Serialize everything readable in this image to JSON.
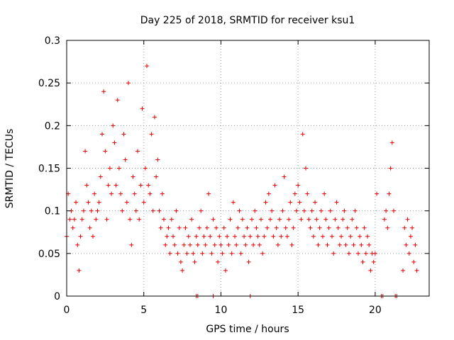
{
  "chart_data": {
    "type": "scatter",
    "title": "Day 225 of 2018, SRMTID for receiver ksu1",
    "xlabel": "GPS time / hours",
    "ylabel": "SRMTID / TECUs",
    "xlim": [
      0,
      23.5
    ],
    "ylim": [
      0,
      0.3
    ],
    "x_ticks": [
      0,
      5,
      10,
      15,
      20
    ],
    "x_tick_labels": [
      "0",
      "5",
      "10",
      "15",
      "20"
    ],
    "y_ticks": [
      0,
      0.05,
      0.1,
      0.15,
      0.2,
      0.25,
      0.3
    ],
    "y_tick_labels": [
      "0",
      "0.05",
      "0.1",
      "0.15",
      "0.2",
      "0.25",
      "0.3"
    ],
    "grid": true,
    "marker": "+",
    "series": [
      {
        "name": "SRMTID",
        "color": "#e00000",
        "x": [
          0.0,
          0.1,
          0.2,
          0.3,
          0.4,
          0.5,
          0.6,
          0.7,
          0.8,
          0.9,
          1.0,
          1.1,
          1.2,
          1.3,
          1.4,
          1.5,
          1.6,
          1.7,
          1.8,
          1.9,
          2.0,
          2.1,
          2.2,
          2.3,
          2.4,
          2.5,
          2.6,
          2.7,
          2.8,
          2.9,
          3.0,
          3.1,
          3.2,
          3.3,
          3.4,
          3.5,
          3.6,
          3.7,
          3.8,
          3.9,
          4.0,
          4.1,
          4.2,
          4.3,
          4.4,
          4.5,
          4.6,
          4.7,
          4.8,
          4.9,
          5.0,
          5.1,
          5.2,
          5.3,
          5.4,
          5.5,
          5.6,
          5.7,
          5.8,
          5.9,
          6.0,
          6.1,
          6.2,
          6.3,
          6.4,
          6.5,
          6.6,
          6.7,
          6.8,
          6.9,
          7.0,
          7.1,
          7.2,
          7.3,
          7.4,
          7.5,
          7.6,
          7.7,
          7.8,
          7.9,
          8.0,
          8.1,
          8.2,
          8.3,
          8.4,
          8.5,
          8.6,
          8.7,
          8.8,
          8.9,
          9.0,
          9.1,
          9.2,
          9.3,
          9.4,
          9.5,
          9.6,
          9.7,
          9.8,
          9.9,
          10.0,
          10.1,
          10.2,
          10.3,
          10.4,
          10.5,
          10.6,
          10.7,
          10.8,
          10.9,
          11.0,
          11.1,
          11.2,
          11.3,
          11.4,
          11.5,
          11.6,
          11.7,
          11.8,
          11.9,
          12.0,
          12.1,
          12.2,
          12.3,
          12.4,
          12.5,
          12.6,
          12.7,
          12.8,
          12.9,
          13.0,
          13.1,
          13.2,
          13.3,
          13.4,
          13.5,
          13.6,
          13.7,
          13.8,
          13.9,
          14.0,
          14.1,
          14.2,
          14.3,
          14.4,
          14.5,
          14.6,
          14.7,
          14.8,
          14.9,
          15.0,
          15.1,
          15.2,
          15.3,
          15.4,
          15.5,
          15.6,
          15.7,
          15.8,
          15.9,
          16.0,
          16.1,
          16.2,
          16.3,
          16.4,
          16.5,
          16.6,
          16.7,
          16.8,
          16.9,
          17.0,
          17.1,
          17.2,
          17.3,
          17.4,
          17.5,
          17.6,
          17.7,
          17.8,
          17.9,
          18.0,
          18.1,
          18.2,
          18.3,
          18.4,
          18.5,
          18.6,
          18.7,
          18.8,
          18.9,
          19.0,
          19.1,
          19.2,
          19.3,
          19.4,
          19.5,
          19.6,
          19.7,
          19.8,
          19.9,
          20.0,
          20.1,
          20.6,
          20.7,
          20.8,
          20.9,
          21.0,
          21.1,
          21.2,
          21.8,
          21.9,
          22.0,
          22.1,
          22.2,
          22.3,
          22.4,
          22.5,
          22.6,
          22.7,
          8.4,
          8.5,
          9.5,
          11.9,
          20.4,
          20.5,
          21.3,
          21.4
        ],
        "y": [
          0.07,
          0.12,
          0.09,
          0.1,
          0.08,
          0.09,
          0.11,
          0.06,
          0.03,
          0.07,
          0.09,
          0.1,
          0.17,
          0.13,
          0.11,
          0.08,
          0.1,
          0.07,
          0.12,
          0.09,
          0.1,
          0.11,
          0.14,
          0.19,
          0.24,
          0.17,
          0.09,
          0.13,
          0.15,
          0.12,
          0.2,
          0.18,
          0.13,
          0.23,
          0.15,
          0.12,
          0.1,
          0.19,
          0.16,
          0.11,
          0.25,
          0.09,
          0.06,
          0.14,
          0.12,
          0.1,
          0.17,
          0.09,
          0.13,
          0.22,
          0.11,
          0.15,
          0.27,
          0.13,
          0.12,
          0.19,
          0.1,
          0.21,
          0.14,
          0.16,
          0.1,
          0.08,
          0.12,
          0.09,
          0.06,
          0.07,
          0.08,
          0.05,
          0.09,
          0.07,
          0.06,
          0.1,
          0.05,
          0.08,
          0.04,
          0.03,
          0.06,
          0.08,
          0.05,
          0.07,
          0.06,
          0.09,
          0.05,
          0.04,
          0.07,
          0.06,
          0.08,
          0.1,
          0.05,
          0.07,
          0.06,
          0.08,
          0.12,
          0.07,
          0.05,
          0.09,
          0.06,
          0.08,
          0.04,
          0.07,
          0.06,
          0.05,
          0.08,
          0.03,
          0.07,
          0.06,
          0.09,
          0.05,
          0.11,
          0.07,
          0.06,
          0.08,
          0.1,
          0.05,
          0.09,
          0.07,
          0.06,
          0.08,
          0.04,
          0.07,
          0.09,
          0.06,
          0.1,
          0.08,
          0.07,
          0.06,
          0.09,
          0.05,
          0.07,
          0.11,
          0.08,
          0.12,
          0.09,
          0.1,
          0.07,
          0.13,
          0.08,
          0.06,
          0.09,
          0.07,
          0.1,
          0.14,
          0.08,
          0.07,
          0.09,
          0.11,
          0.06,
          0.08,
          0.12,
          0.1,
          0.13,
          0.11,
          0.09,
          0.19,
          0.1,
          0.15,
          0.12,
          0.09,
          0.08,
          0.1,
          0.07,
          0.11,
          0.09,
          0.06,
          0.08,
          0.1,
          0.07,
          0.12,
          0.09,
          0.06,
          0.08,
          0.1,
          0.07,
          0.05,
          0.09,
          0.11,
          0.08,
          0.06,
          0.07,
          0.09,
          0.1,
          0.06,
          0.08,
          0.05,
          0.07,
          0.09,
          0.06,
          0.1,
          0.08,
          0.05,
          0.07,
          0.06,
          0.04,
          0.08,
          0.05,
          0.07,
          0.06,
          0.03,
          0.05,
          0.04,
          0.05,
          0.12,
          0.09,
          0.1,
          0.08,
          0.12,
          0.15,
          0.18,
          0.1,
          0.03,
          0.08,
          0.06,
          0.09,
          0.05,
          0.07,
          0.08,
          0.04,
          0.06,
          0.03,
          0.0,
          0.0,
          0.0,
          0.0,
          0.0,
          0.0,
          0.0,
          0.0
        ]
      }
    ]
  }
}
